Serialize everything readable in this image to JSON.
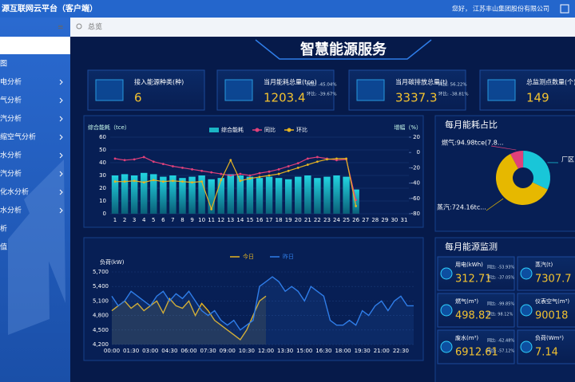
{
  "header": {
    "title": "源互联网云平台（客户端）",
    "greeting": "您好，",
    "company": "江苏丰山集团股份有限公司"
  },
  "sidebar": {
    "menu": [
      "图",
      "电分析",
      "气分析",
      "汽分析",
      "缩空气分析",
      "水分析",
      "汽分析",
      "化水分析",
      "水分析",
      "析",
      "值"
    ]
  },
  "breadcrumb": "总览",
  "dashboard_title": "智慧能源服务",
  "kpis": [
    {
      "label": "接入能源种类(种)",
      "value": "6"
    },
    {
      "label": "当月能耗总量(tce)",
      "value": "1203.4",
      "yoy": "同比: -45.04%",
      "mom": "环比: -39.67%"
    },
    {
      "label": "当月碳排放总量(t)",
      "value": "3337.3",
      "yoy": "同比: 56.22%",
      "mom": "环比: -38.81%"
    },
    {
      "label": "总监测点数量(个)",
      "value": "149"
    }
  ],
  "chart_data": [
    {
      "type": "bar",
      "ylabel": "综合能耗（tce）",
      "y2label": "增幅（%）",
      "categories": [
        "1",
        "2",
        "3",
        "4",
        "5",
        "6",
        "7",
        "8",
        "9",
        "10",
        "11",
        "12",
        "13",
        "14",
        "15",
        "16",
        "17",
        "18",
        "19",
        "20",
        "21",
        "22",
        "23",
        "24",
        "25",
        "26",
        "27",
        "28",
        "29",
        "30",
        "31"
      ],
      "ylim": [
        0,
        60
      ],
      "yticks": [
        0,
        10,
        20,
        30,
        40,
        50,
        60
      ],
      "y2lim": [
        -80,
        20
      ],
      "y2ticks": [
        -80,
        -60,
        -40,
        -20,
        0,
        20
      ],
      "series": [
        {
          "name": "综合能耗",
          "kind": "bar",
          "color": "#1bb5c4",
          "values": [
            30,
            31,
            30,
            32,
            31,
            29,
            30,
            28,
            29,
            30,
            27,
            28,
            31,
            30,
            29,
            28,
            29,
            28,
            27,
            29,
            30,
            28,
            29,
            30,
            29,
            19,
            null,
            null,
            null,
            null,
            null
          ]
        },
        {
          "name": "同比",
          "kind": "line",
          "axis": "y2",
          "color": "#e0407a",
          "values": [
            -8,
            -10,
            -9,
            -6,
            -12,
            -15,
            -18,
            -20,
            -22,
            -24,
            -26,
            -28,
            -30,
            -28,
            -30,
            -27,
            -25,
            -22,
            -18,
            -14,
            -8,
            -6,
            -8,
            -10,
            -9,
            -62,
            null,
            null,
            null,
            null,
            null
          ]
        },
        {
          "name": "环比",
          "kind": "line",
          "axis": "y2",
          "color": "#e6b422",
          "values": [
            -38,
            -38,
            -37,
            -39,
            -36,
            -38,
            -37,
            -38,
            -39,
            -38,
            -74,
            -36,
            -10,
            -37,
            -34,
            -32,
            -30,
            -28,
            -24,
            -20,
            -16,
            -12,
            -9,
            -8,
            -8,
            -70,
            null,
            null,
            null,
            null,
            null
          ]
        }
      ]
    },
    {
      "type": "line",
      "ylabel": "负荷(kW)",
      "categories": [
        "00:00",
        null,
        null,
        "01:30",
        null,
        null,
        "03:00",
        null,
        null,
        "04:30",
        null,
        null,
        "06:00",
        null,
        null,
        "07:30",
        null,
        null,
        "09:00",
        null,
        null,
        "10:30",
        null,
        null,
        "12:00",
        null,
        null,
        "13:30",
        null,
        null,
        "15:00",
        null,
        null,
        "16:30",
        null,
        null,
        "18:00",
        null,
        null,
        "19:30",
        null,
        null,
        "21:00",
        null,
        null,
        "22:30",
        null,
        null
      ],
      "ylim": [
        4200,
        5700
      ],
      "yticks": [
        {
          "value": 4200,
          "label": "4,200"
        },
        {
          "value": 4500,
          "label": "4,500"
        },
        {
          "value": 4800,
          "label": "4,800"
        },
        {
          "value": 5100,
          "label": "5,100"
        },
        {
          "value": 5400,
          "label": "5,400"
        },
        {
          "value": 5700,
          "label": "5,700"
        }
      ],
      "series": [
        {
          "name": "今日",
          "color": "#e6b422",
          "values": [
            4900,
            5000,
            5100,
            4950,
            5050,
            4900,
            5000,
            5100,
            4850,
            5150,
            5000,
            4950,
            5100,
            4800,
            5050,
            4900,
            4700,
            4600,
            4500,
            4400,
            4300,
            4500,
            4800,
            5100,
            5200,
            null,
            null,
            null,
            null,
            null,
            null,
            null,
            null,
            null,
            null,
            null,
            null,
            null,
            null,
            null,
            null,
            null,
            null,
            null,
            null,
            null,
            null,
            null
          ]
        },
        {
          "name": "昨日",
          "color": "#2f7de8",
          "values": [
            5200,
            5000,
            5100,
            5300,
            5200,
            5100,
            5000,
            5200,
            5300,
            5100,
            5250,
            5150,
            5300,
            5100,
            4900,
            4800,
            4900,
            4700,
            4600,
            4700,
            4500,
            4600,
            4700,
            5400,
            5500,
            5600,
            5500,
            5300,
            5400,
            5300,
            5100,
            5400,
            5300,
            5200,
            4700,
            4600,
            4600,
            4700,
            4600,
            4900,
            4800,
            5000,
            5100,
            4900,
            5100,
            5200,
            5000,
            5000
          ]
        }
      ]
    },
    {
      "type": "pie",
      "title": "每月能耗占比",
      "labels": [
        "燃气:94.98tce(7.8...",
        "厂区",
        "蒸汽:724.16tc..."
      ],
      "values": [
        94.98,
        384.26,
        724.16
      ],
      "colors": [
        "#e0407a",
        "#19c6d8",
        "#e6b800"
      ]
    }
  ],
  "monitor": {
    "title": "每月能源监测",
    "items": [
      {
        "label": "用电(kWh)",
        "value": "312.71",
        "yoy": "同比: -53.93%",
        "mom": "环比: -37.05%"
      },
      {
        "label": "蒸汽(t)",
        "value": "7307.7"
      },
      {
        "label": "燃气(m³)",
        "value": "498.82",
        "yoy": "同比: -99.85%",
        "mom": "环比: 98.12%"
      },
      {
        "label": "仪表空气(m³)",
        "value": "90018"
      },
      {
        "label": "废水(m³)",
        "value": "6912.61",
        "yoy": "同比: -62.48%",
        "mom": "环比: -57.12%"
      },
      {
        "label": "负荷(Wm²)",
        "value": "7.14"
      }
    ]
  }
}
